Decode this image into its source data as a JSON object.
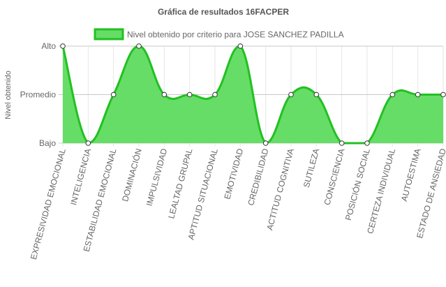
{
  "chart_data": {
    "type": "area",
    "title": "Gráfica de resultados 16FACPER",
    "ylabel": "Nivel obtenido",
    "xlabel": "",
    "y_levels": [
      "Bajo",
      "Promedio",
      "Alto"
    ],
    "ylim": [
      0,
      2
    ],
    "legend_position": "top",
    "categories": [
      "EXPRESIVIDAD EMOCIONAL",
      "INTELIGENCIA",
      "ESTABILIDAD EMOCIONAL",
      "DOMINACIÓN",
      "IMPULSIVIDAD",
      "LEALTAD GRUPAL",
      "APTITUD SITUACIONAL",
      "EMOTIVIDAD",
      "CREDIBILIDAD",
      "ACTITUD COGNITIVA",
      "SUTILEZA",
      "CONSCIENCIA",
      "POSICIÓN SOCIAL",
      "CERTEZA INDIVIDUAL",
      "AUTOESTIMA",
      "ESTADO DE ANSIEDAD"
    ],
    "series": [
      {
        "name": "Nivel obtenido por criterio para JOSE SANCHEZ PADILLA",
        "values": [
          2,
          0,
          1,
          2,
          1,
          1,
          1,
          2,
          0,
          1,
          1,
          0,
          0,
          1,
          1,
          1
        ],
        "fill_color": "#66dd66",
        "line_color": "#22c022"
      }
    ],
    "grid": true
  }
}
